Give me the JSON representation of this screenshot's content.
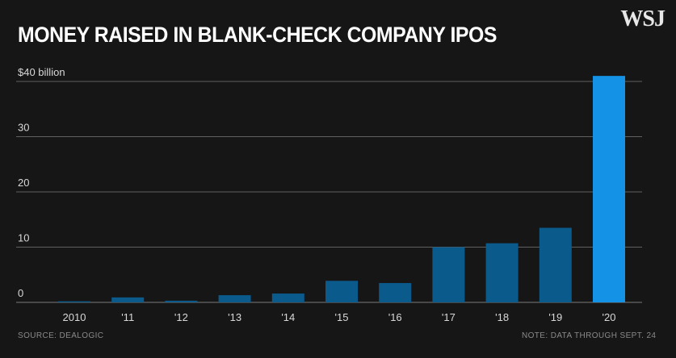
{
  "header": {
    "title": "MONEY RAISED IN BLANK-CHECK COMPANY IPOS",
    "logo": "WSJ"
  },
  "footer": {
    "source": "SOURCE: DEALOGIC",
    "note": "NOTE: DATA THROUGH SEPT. 24"
  },
  "colors": {
    "background": "#161616",
    "bar": "#0a5a8c",
    "bar_highlight": "#1493e6",
    "gridline": "#7a7a7a"
  },
  "chart_data": {
    "type": "bar",
    "title": "MONEY RAISED IN BLANK-CHECK COMPANY IPOS",
    "xlabel": "",
    "ylabel": "",
    "categories": [
      "2010",
      "'11",
      "'12",
      "'13",
      "'14",
      "'15",
      "'16",
      "'17",
      "'18",
      "'19",
      "'20"
    ],
    "values": [
      0.2,
      0.9,
      0.3,
      1.3,
      1.6,
      3.9,
      3.5,
      10.0,
      10.7,
      13.5,
      41.0
    ],
    "highlight_index": 10,
    "ylim": [
      0,
      40
    ],
    "yticks": [
      0,
      10,
      20,
      30,
      40
    ],
    "ytick_labels": [
      "0",
      "10",
      "20",
      "30",
      "$40 billion"
    ],
    "grid": true,
    "legend": "none"
  }
}
